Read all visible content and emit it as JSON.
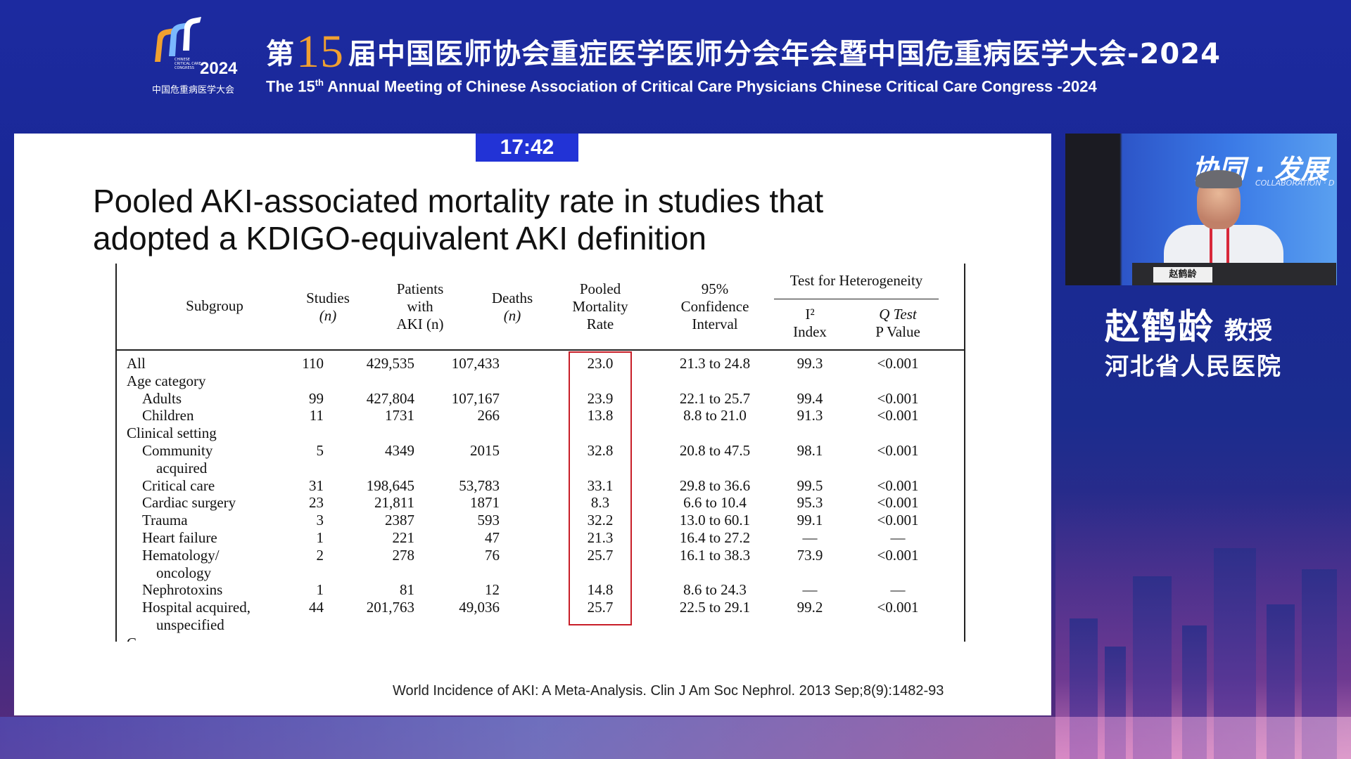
{
  "header": {
    "logo_year": "2024",
    "logo_small_text": "CHINESE CRITICAL CARE CONGRESS",
    "logo_subtitle": "中国危重病医学大会",
    "title_cn_prefix": "第",
    "title_cn_number": "15",
    "title_cn_suffix": "届中国医师协会重症医学医师分会年会暨中国危重病医学大会-2024",
    "title_en_pre": "The 15",
    "title_en_sup": "th",
    "title_en_post": " Annual Meeting of Chinese Association of Critical Care Physicians Chinese Critical Care Congress -2024"
  },
  "slide": {
    "timer": "17:42",
    "title_line1": "Pooled AKI-associated mortality rate in studies that",
    "title_line2": "adopted a KDIGO-equivalent AKI definition",
    "citation": "World Incidence of AKI: A Meta-Analysis. Clin J Am Soc Nephrol. 2013 Sep;8(9):1482-93",
    "table": {
      "headers": {
        "subgroup": "Subgroup",
        "studies_1": "Studies",
        "studies_2": "(n)",
        "patients_1": "Patients",
        "patients_2": "with",
        "patients_3": "AKI (n)",
        "deaths_1": "Deaths",
        "deaths_2": "(n)",
        "rate_1": "Pooled",
        "rate_2": "Mortality",
        "rate_3": "Rate",
        "ci_1": "95%",
        "ci_2": "Confidence",
        "ci_3": "Interval",
        "heterogeneity": "Test for Heterogeneity",
        "i2_1": "I²",
        "i2_2": "Index",
        "q_1": "Q Test",
        "q_2": "P Value"
      },
      "rows": [
        {
          "name": "All",
          "studies": "110",
          "patients": "429,535",
          "deaths": "107,433",
          "rate": "23.0",
          "ci": "21.3 to 24.8",
          "i2": "99.3",
          "q": "<0.001"
        },
        {
          "name": "Age category",
          "studies": "",
          "patients": "",
          "deaths": "",
          "rate": "",
          "ci": "",
          "i2": "",
          "q": ""
        },
        {
          "name": "Adults",
          "studies": "99",
          "patients": "427,804",
          "deaths": "107,167",
          "rate": "23.9",
          "ci": "22.1 to 25.7",
          "i2": "99.4",
          "q": "<0.001"
        },
        {
          "name": "Children",
          "studies": "11",
          "patients": "1731",
          "deaths": "266",
          "rate": "13.8",
          "ci": "8.8 to 21.0",
          "i2": "91.3",
          "q": "<0.001"
        },
        {
          "name": "Clinical setting",
          "studies": "",
          "patients": "",
          "deaths": "",
          "rate": "",
          "ci": "",
          "i2": "",
          "q": ""
        },
        {
          "name": "Community",
          "studies": "5",
          "patients": "4349",
          "deaths": "2015",
          "rate": "32.8",
          "ci": "20.8 to 47.5",
          "i2": "98.1",
          "q": "<0.001"
        },
        {
          "name": "acquired",
          "studies": "",
          "patients": "",
          "deaths": "",
          "rate": "",
          "ci": "",
          "i2": "",
          "q": ""
        },
        {
          "name": "Critical care",
          "studies": "31",
          "patients": "198,645",
          "deaths": "53,783",
          "rate": "33.1",
          "ci": "29.8 to 36.6",
          "i2": "99.5",
          "q": "<0.001"
        },
        {
          "name": "Cardiac surgery",
          "studies": "23",
          "patients": "21,811",
          "deaths": "1871",
          "rate": "8.3",
          "ci": "6.6 to 10.4",
          "i2": "95.3",
          "q": "<0.001"
        },
        {
          "name": "Trauma",
          "studies": "3",
          "patients": "2387",
          "deaths": "593",
          "rate": "32.2",
          "ci": "13.0 to 60.1",
          "i2": "99.1",
          "q": "<0.001"
        },
        {
          "name": "Heart failure",
          "studies": "1",
          "patients": "221",
          "deaths": "47",
          "rate": "21.3",
          "ci": "16.4 to 27.2",
          "i2": "—",
          "q": "—"
        },
        {
          "name": "Hematology/",
          "studies": "2",
          "patients": "278",
          "deaths": "76",
          "rate": "25.7",
          "ci": "16.1 to 38.3",
          "i2": "73.9",
          "q": "<0.001"
        },
        {
          "name": "oncology",
          "studies": "",
          "patients": "",
          "deaths": "",
          "rate": "",
          "ci": "",
          "i2": "",
          "q": ""
        },
        {
          "name": "Nephrotoxins",
          "studies": "1",
          "patients": "81",
          "deaths": "12",
          "rate": "14.8",
          "ci": "8.6 to 24.3",
          "i2": "—",
          "q": "—"
        },
        {
          "name": "Hospital acquired,",
          "studies": "44",
          "patients": "201,763",
          "deaths": "49,036",
          "rate": "25.7",
          "ci": "22.5 to 29.1",
          "i2": "99.2",
          "q": "<0.001"
        },
        {
          "name": "unspecified",
          "studies": "",
          "patients": "",
          "deaths": "",
          "rate": "",
          "ci": "",
          "i2": "",
          "q": ""
        }
      ],
      "row_indent": [
        0,
        0,
        1,
        1,
        0,
        1,
        2,
        1,
        1,
        1,
        1,
        1,
        2,
        1,
        1,
        2
      ],
      "cutoff_text": "C",
      "highlight_color": "#c81e28"
    }
  },
  "video": {
    "banner": "协同 · 发展",
    "banner_sub": "COLLABORATION · D",
    "podium_sign": "赵鹤龄"
  },
  "speaker": {
    "name": "赵鹤龄",
    "title": "教授",
    "organization": "河北省人民医院"
  },
  "colors": {
    "background": "#1c2aa0",
    "timer": "#2233d6",
    "title_accent": "#f0a030"
  }
}
